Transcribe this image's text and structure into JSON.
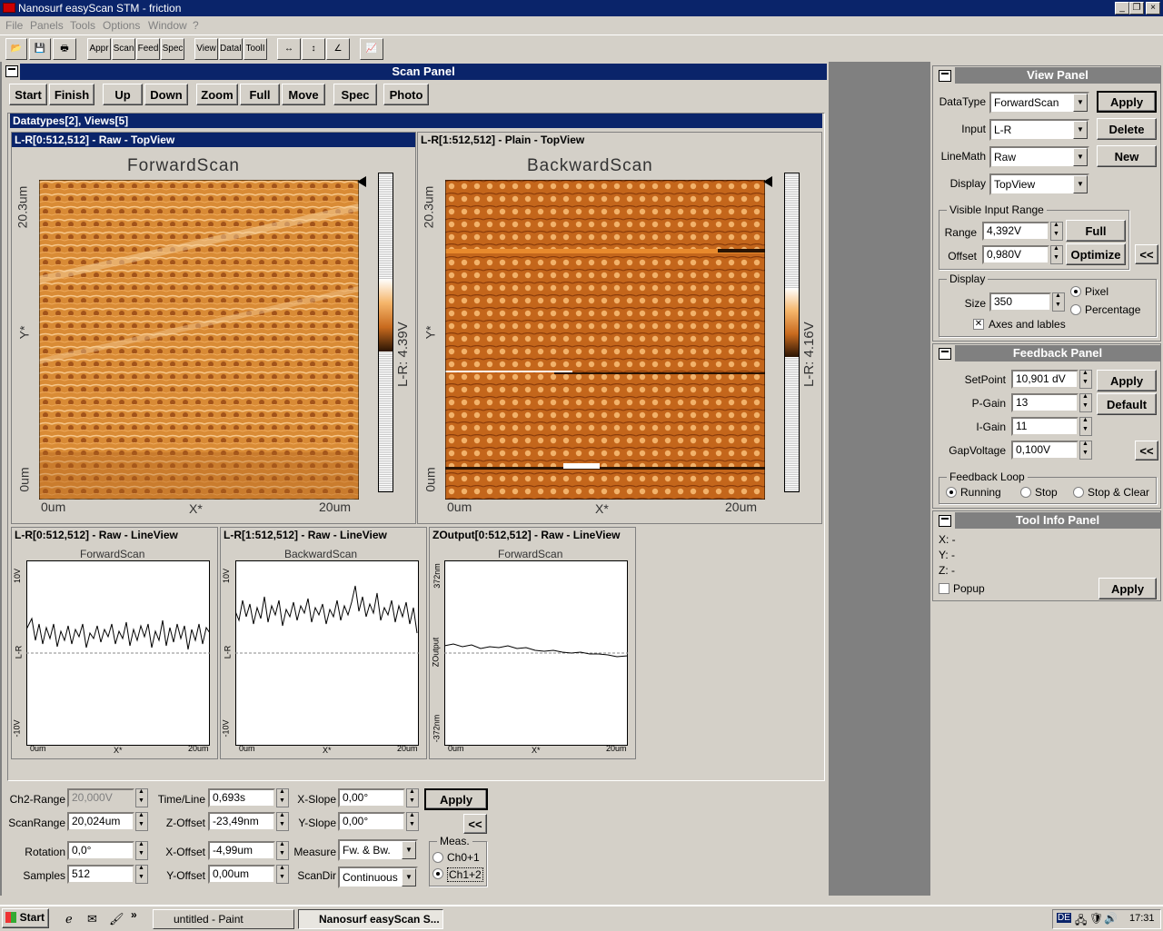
{
  "window": {
    "title": "Nanosurf easyScan STM - friction"
  },
  "menu": [
    "File",
    "Panels",
    "Tools",
    "Options",
    "Window",
    "?"
  ],
  "toolbar": [
    "Appr",
    "Scan",
    "Feed",
    "Spec",
    "View",
    "DataI",
    "ToolI"
  ],
  "scan_panel": {
    "title": "Scan Panel",
    "buttons": [
      "Start",
      "Finish",
      "Up",
      "Down",
      "Zoom",
      "Full",
      "Move",
      "Spec",
      "Photo"
    ],
    "datatypes_header": "Datatypes[2], Views[5]",
    "views": [
      {
        "header": "L-R[0:512,512] - Raw - TopView",
        "plot_title": "ForwardScan",
        "y_top": "20.3um",
        "y_bottom": "0um",
        "y_axis": "Y*",
        "x_left": "0um",
        "x_mid": "X*",
        "x_right": "20um",
        "colorbar_label": "L-R: 4.39V"
      },
      {
        "header": "L-R[1:512,512] - Plain - TopView",
        "plot_title": "BackwardScan",
        "y_top": "20.3um",
        "y_bottom": "0um",
        "y_axis": "Y*",
        "x_left": "0um",
        "x_mid": "X*",
        "x_right": "20um",
        "colorbar_label": "L-R: 4.16V"
      }
    ],
    "lineviews": [
      {
        "header": "L-R[0:512,512] - Raw - LineView",
        "plot_title": "ForwardScan",
        "y_top": "10V",
        "y_mid": "L-R",
        "y_bottom": "-10V",
        "x_left": "0um",
        "x_mid": "X*",
        "x_right": "20um"
      },
      {
        "header": "L-R[1:512,512] - Raw - LineView",
        "plot_title": "BackwardScan",
        "y_top": "10V",
        "y_mid": "L-R",
        "y_bottom": "-10V",
        "x_left": "0um",
        "x_mid": "X*",
        "x_right": "20um"
      },
      {
        "header": "ZOutput[0:512,512] - Raw - LineView",
        "plot_title": "ForwardScan",
        "y_top": "372nm",
        "y_mid": "ZOutput",
        "y_bottom": "-372nm",
        "x_left": "0um",
        "x_mid": "X*",
        "x_right": "20um"
      }
    ],
    "params": {
      "ch2_range_label": "Ch2-Range",
      "ch2_range": "20,000V",
      "scanrange_label": "ScanRange",
      "scanrange": "20,024um",
      "rotation_label": "Rotation",
      "rotation": "0,0°",
      "samples_label": "Samples",
      "samples": "512",
      "timeline_label": "Time/Line",
      "timeline": "0,693s",
      "zoffset_label": "Z-Offset",
      "zoffset": "-23,49nm",
      "xoffset_label": "X-Offset",
      "xoffset": "-4,99um",
      "yoffset_label": "Y-Offset",
      "yoffset": "0,00um",
      "xslope_label": "X-Slope",
      "xslope": "0,00°",
      "yslope_label": "Y-Slope",
      "yslope": "0,00°",
      "measure_label": "Measure",
      "measure": "Fw. & Bw.",
      "scandir_label": "ScanDir",
      "scandir": "Continuous",
      "apply": "Apply",
      "collapse": "<<",
      "meas_title": "Meas.",
      "meas_opt1": "Ch0+1",
      "meas_opt2": "Ch1+2"
    }
  },
  "view_panel": {
    "title": "View Panel",
    "datatype_label": "DataType",
    "datatype": "ForwardScan",
    "input_label": "Input",
    "input": "L-R",
    "linemath_label": "LineMath",
    "linemath": "Raw",
    "display_label": "Display",
    "display": "TopView",
    "apply": "Apply",
    "delete": "Delete",
    "new": "New",
    "vir_title": "Visible Input Range",
    "range_label": "Range",
    "range": "4,392V",
    "offset_label": "Offset",
    "offset": "0,980V",
    "full": "Full",
    "optimize": "Optimize",
    "collapse": "<<",
    "display_group": "Display",
    "size_label": "Size",
    "size": "350",
    "pixel": "Pixel",
    "percentage": "Percentage",
    "axes": "Axes and lables"
  },
  "feedback_panel": {
    "title": "Feedback Panel",
    "setpoint_label": "SetPoint",
    "setpoint": "10,901 dV",
    "pgain_label": "P-Gain",
    "pgain": "13",
    "igain_label": "I-Gain",
    "igain": "11",
    "gapvoltage_label": "GapVoltage",
    "gapvoltage": "0,100V",
    "apply": "Apply",
    "default": "Default",
    "collapse": "<<",
    "loop_title": "Feedback Loop",
    "running": "Running",
    "stop": "Stop",
    "stop_clear": "Stop & Clear"
  },
  "tool_info_panel": {
    "title": "Tool Info Panel",
    "x": "X: -",
    "y": "Y: -",
    "z": "Z: -",
    "popup": "Popup",
    "apply": "Apply"
  },
  "taskbar": {
    "start": "Start",
    "tasks": [
      "untitled - Paint",
      "Nanosurf easyScan S..."
    ],
    "lang": "DE",
    "clock": "17:31"
  }
}
